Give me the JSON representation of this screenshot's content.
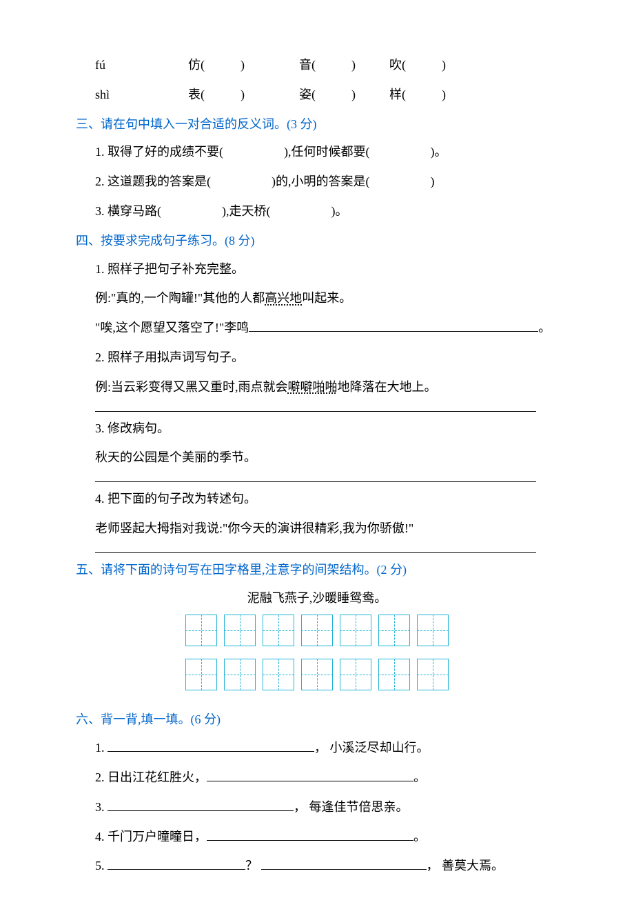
{
  "colors": {
    "heading": "#0066cc",
    "text": "#000000",
    "grid_border": "#1fb4d6",
    "background": "#ffffff"
  },
  "typography": {
    "body_fontsize": 18,
    "font_family": "SimSun"
  },
  "pinyin_table": {
    "rows": [
      {
        "pinyin": "fú",
        "cells": [
          "仿(",
          ")",
          "音(",
          ")",
          "吹(",
          ")"
        ]
      },
      {
        "pinyin": "shì",
        "cells": [
          "表(",
          ")",
          "姿(",
          ")",
          "样(",
          ")"
        ]
      }
    ]
  },
  "sec3": {
    "heading": "三、请在句中填入一对合适的反义词。(3 分)",
    "items": [
      {
        "pre": "1. 取得了好的成绩不要(",
        "mid": "),任何时候都要(",
        "post": ")。"
      },
      {
        "pre": "2. 这道题我的答案是(",
        "mid": ")的,小明的答案是(",
        "post": ")"
      },
      {
        "pre": "3. 横穿马路(",
        "mid": "),走天桥(",
        "post": ")。"
      }
    ]
  },
  "sec4": {
    "heading": "四、按要求完成句子练习。(8 分)",
    "items": {
      "one": {
        "title": "1. 照样子把句子补充完整。",
        "example_pre": "例:\"真的,一个陶罐!\"其他的人都",
        "example_emph": "高兴地",
        "example_post": "叫起来。",
        "prompt_pre": "\"唉,这个愿望又落空了!\"李鸣",
        "prompt_post": "。"
      },
      "two": {
        "title": "2. 照样子用拟声词写句子。",
        "example_pre": "例:当云彩变得又黑又重时,雨点就会",
        "example_emph": "噼噼啪啪",
        "example_post": "地降落在大地上。"
      },
      "three": {
        "title": "3. 修改病句。",
        "sentence": "秋天的公园是个美丽的季节。"
      },
      "four": {
        "title": "4. 把下面的句子改为转述句。",
        "sentence": "老师竖起大拇指对我说:\"你今天的演讲很精彩,我为你骄傲!\""
      }
    }
  },
  "sec5": {
    "heading": "五、请将下面的诗句写在田字格里,注意字的间架结构。(2 分)",
    "poetry": "泥融飞燕子,沙暖睡鸳鸯。",
    "grid_rows": 2,
    "grid_cols": 7
  },
  "sec6": {
    "heading": "六、背一背,填一填。(6 分)",
    "items": [
      {
        "num": "1.",
        "before": "",
        "sep": "，",
        "after": "小溪泛尽却山行。",
        "blank_first": true
      },
      {
        "num": "2.",
        "before": "日出江花红胜火，",
        "after": "。",
        "blank_first": false
      },
      {
        "num": "3.",
        "before": "",
        "sep": "，",
        "after": "每逢佳节倍思亲。",
        "blank_first": true
      },
      {
        "num": "4.",
        "before": "千门万户曈曈日，",
        "after": "。",
        "blank_first": false
      },
      {
        "num": "5.",
        "before": "",
        "sep": "？",
        "mid_after": "，",
        "after": "善莫大焉。",
        "two_blanks": true
      }
    ]
  }
}
